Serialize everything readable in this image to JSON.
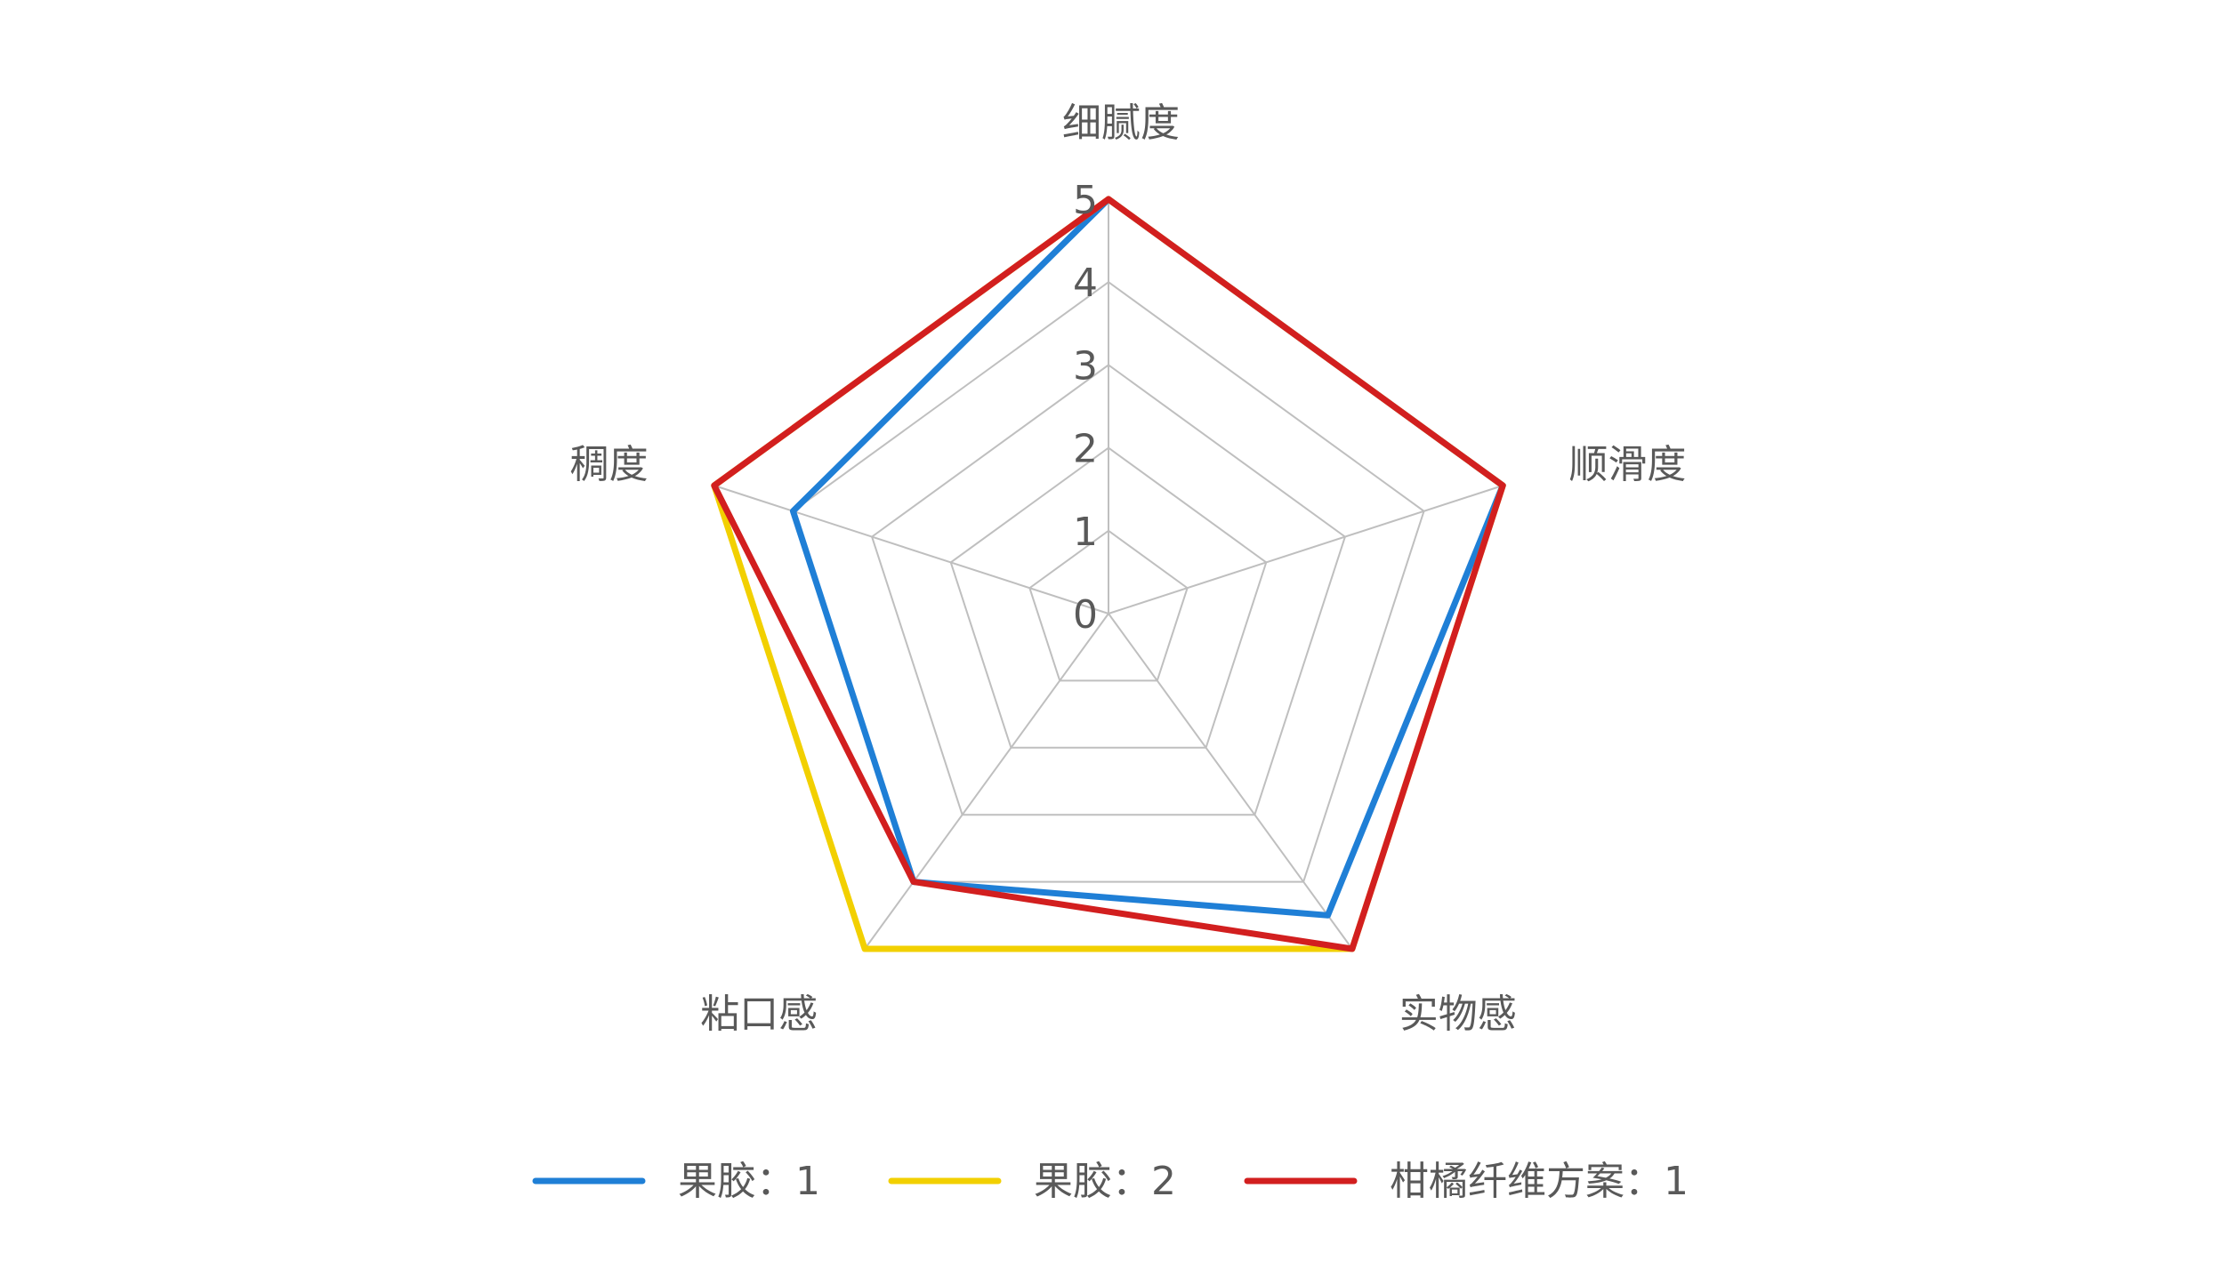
{
  "chart_data": {
    "type": "radar",
    "title": "",
    "axes": [
      "细腻度",
      "顺滑度",
      "实物感",
      "粘口感",
      "稠度"
    ],
    "r_range": [
      0,
      5
    ],
    "r_ticks": [
      "0",
      "1",
      "2",
      "3",
      "4",
      "5"
    ],
    "grid": true,
    "legend_position": "bottom",
    "series": [
      {
        "name": "果胶：1",
        "color": "#1F7FD6",
        "values": [
          5,
          5,
          4.5,
          4,
          4
        ]
      },
      {
        "name": "果胶：2",
        "color": "#F2D000",
        "values": [
          5,
          5,
          5,
          5,
          5
        ]
      },
      {
        "name": "柑橘纤维方案：1",
        "color": "#D21F1F",
        "values": [
          5,
          5,
          5,
          4,
          5
        ]
      }
    ]
  },
  "colors": {
    "grid": "#BFBFBF",
    "text": "#595959"
  }
}
